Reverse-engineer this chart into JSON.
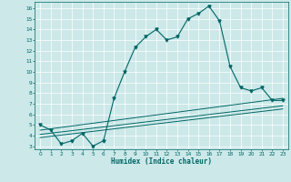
{
  "xlabel": "Humidex (Indice chaleur)",
  "bg_color": "#cce8e8",
  "line_color": "#006666",
  "grid_color": "#ffffff",
  "xlim": [
    -0.5,
    23.5
  ],
  "ylim": [
    2.7,
    16.6
  ],
  "yticks": [
    3,
    4,
    5,
    6,
    7,
    8,
    9,
    10,
    11,
    12,
    13,
    14,
    15,
    16
  ],
  "xticks": [
    0,
    1,
    2,
    3,
    4,
    5,
    6,
    7,
    8,
    9,
    10,
    11,
    12,
    13,
    14,
    15,
    16,
    17,
    18,
    19,
    20,
    21,
    22,
    23
  ],
  "main_curve_x": [
    0,
    1,
    2,
    3,
    4,
    5,
    6,
    7,
    8,
    9,
    10,
    11,
    12,
    13,
    14,
    15,
    16,
    17,
    18,
    19,
    20,
    21,
    22,
    23
  ],
  "main_curve_y": [
    5.0,
    4.5,
    3.2,
    3.5,
    4.2,
    3.0,
    3.5,
    7.5,
    10.0,
    12.3,
    13.3,
    14.0,
    13.0,
    13.3,
    15.0,
    15.5,
    16.2,
    14.8,
    10.5,
    8.5,
    8.2,
    8.5,
    7.3,
    7.3
  ],
  "diag_lines": [
    {
      "x": [
        0,
        23
      ],
      "y": [
        3.8,
        6.5
      ]
    },
    {
      "x": [
        0,
        23
      ],
      "y": [
        4.1,
        6.8
      ]
    },
    {
      "x": [
        0,
        23
      ],
      "y": [
        4.5,
        7.5
      ]
    }
  ]
}
